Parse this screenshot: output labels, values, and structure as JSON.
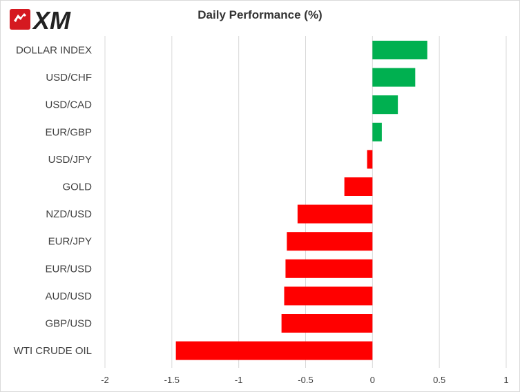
{
  "brand": {
    "logo_text": "XM"
  },
  "chart_data": {
    "type": "bar",
    "orientation": "horizontal",
    "title": "Daily Performance (%)",
    "xlabel": "",
    "ylabel": "",
    "categories": [
      "DOLLAR INDEX",
      "USD/CHF",
      "USD/CAD",
      "EUR/GBP",
      "USD/JPY",
      "GOLD",
      "NZD/USD",
      "EUR/JPY",
      "EUR/USD",
      "AUD/USD",
      "GBP/USD",
      "WTI CRUDE OIL"
    ],
    "values": [
      0.41,
      0.32,
      0.19,
      0.07,
      -0.04,
      -0.21,
      -0.56,
      -0.64,
      -0.65,
      -0.66,
      -0.68,
      -1.47
    ],
    "xlim": [
      -2,
      1
    ],
    "xticks": [
      -2,
      -1.5,
      -1,
      -0.5,
      0,
      0.5,
      1
    ],
    "xtick_labels": [
      "-2",
      "-1.5",
      "-1",
      "-0.5",
      "0",
      "0.5",
      "1"
    ],
    "grid": "vertical",
    "legend": "none",
    "colors": {
      "positive": "#00b050",
      "negative": "#ff0000",
      "grid": "#d9d9d9",
      "text": "#404040"
    }
  }
}
